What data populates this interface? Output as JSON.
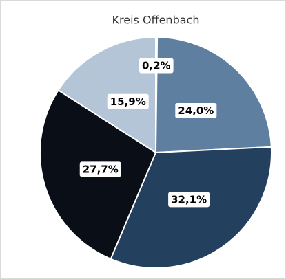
{
  "chart_data": {
    "type": "pie",
    "title": "Kreis Offenbach",
    "values": [
      0.2,
      24.0,
      32.1,
      27.7,
      15.9
    ],
    "value_labels": [
      "0,2%",
      "24,0%",
      "32,1%",
      "27,7%",
      "15,9%"
    ],
    "colors": [
      "#dfe6ee",
      "#5f7fa1",
      "#24405f",
      "#0a0f17",
      "#b5c5d8"
    ]
  }
}
